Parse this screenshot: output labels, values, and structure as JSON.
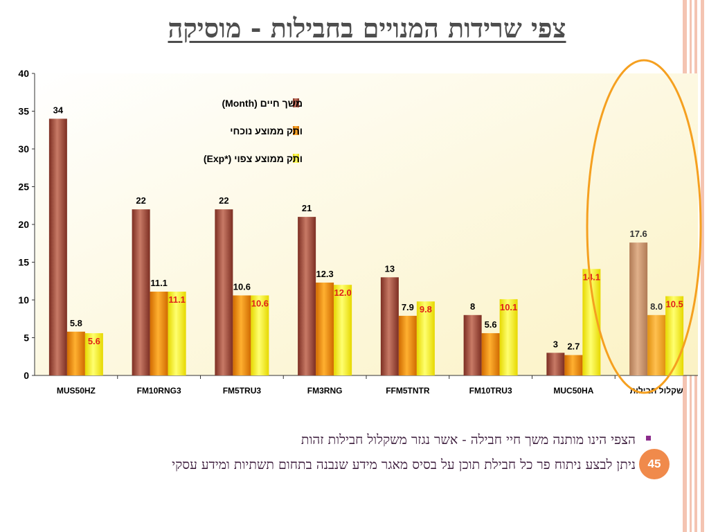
{
  "title": "צפי שרידות המנויים בחבילות - מוסיקה",
  "bullets": [
    "הצפי הינו מותנה משך חיי חבילה - אשר נגזר משקלול חבילות זהות",
    "ניתן לבצע ניתוח פר כל חבילת תוכן על בסיס מאגר מידע שנבנה בתחום תשתיות ומידע עסקי"
  ],
  "page_number": "45",
  "colors": {
    "series_month": "#a2483a",
    "series_current": "#f0900a",
    "series_expected": "#f5f020",
    "weighted_month": "#c8906a",
    "weighted_current": "#f0a830",
    "expected_label": "#e0201a",
    "highlight_ellipse": "#f5a020",
    "accent": "#f08a4b"
  },
  "chart_data": {
    "type": "bar",
    "categories": [
      "MUS50HZ",
      "FM10RNG3",
      "FM5TRU3",
      "FM3RNG",
      "FFM5TNTR",
      "FM10TRU3",
      "MUC50HA",
      "שקלול חבילות"
    ],
    "series": [
      {
        "name": "משך חיים (Month)",
        "values": [
          34,
          22,
          22,
          21,
          13,
          8,
          3,
          17.6
        ],
        "labels": [
          "34",
          "22",
          "22",
          "21",
          "13",
          "8",
          "3",
          "17.6"
        ]
      },
      {
        "name": "ותק ממוצע נוכחי",
        "values": [
          5.8,
          11.1,
          10.6,
          12.3,
          7.9,
          5.6,
          2.7,
          8.0
        ],
        "labels": [
          "5.8",
          "11.1",
          "10.6",
          "12.3",
          "7.9",
          "5.6",
          "2.7",
          "8.0"
        ]
      },
      {
        "name": "ותק ממוצע צפוי (*Exp)",
        "values": [
          5.6,
          11.1,
          10.6,
          12.0,
          9.8,
          10.1,
          14.1,
          10.5
        ],
        "labels": [
          "5.6",
          "11.1",
          "10.6",
          "12.0",
          "9.8",
          "10.1",
          "14.1",
          "10.5"
        ]
      }
    ],
    "ylim": [
      0,
      40
    ],
    "yticks": [
      "0",
      "5",
      "10",
      "15",
      "20",
      "25",
      "30",
      "35",
      "40"
    ],
    "legend_position": "top-center",
    "highlighted_category": "שקלול חבילות",
    "grid": false
  }
}
